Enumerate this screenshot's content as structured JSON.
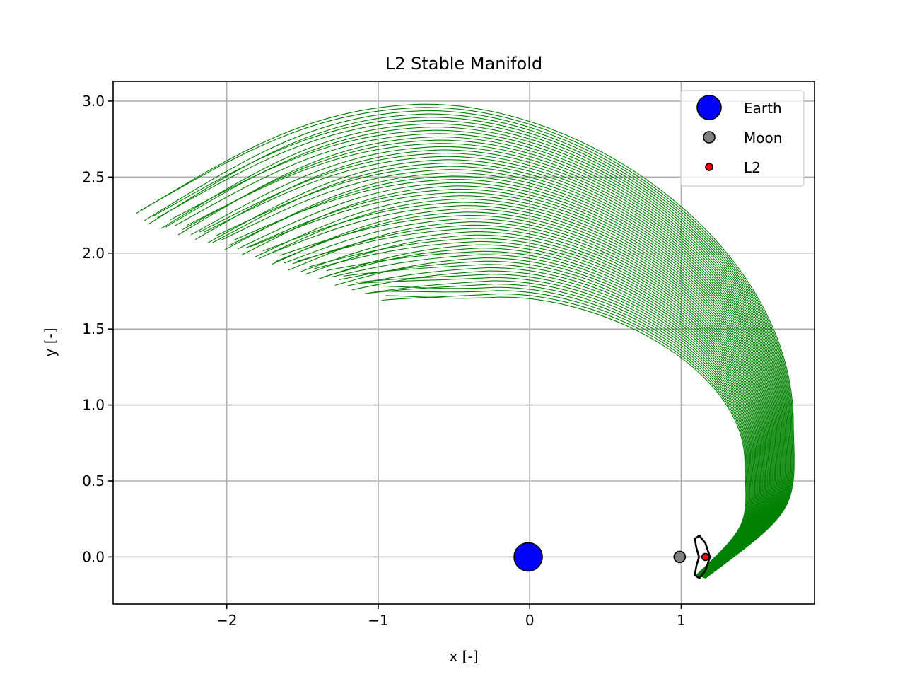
{
  "chart_data": {
    "type": "line",
    "title": "L2 Stable Manifold",
    "xlabel": "x [-]",
    "ylabel": "y [-]",
    "xlim": [
      -2.75,
      1.88
    ],
    "ylim": [
      -0.31,
      3.13
    ],
    "xticks": [
      -2,
      -1,
      0,
      1
    ],
    "xtick_labels": [
      "−2",
      "−1",
      "0",
      "1"
    ],
    "yticks": [
      0.0,
      0.5,
      1.0,
      1.5,
      2.0,
      2.5,
      3.0
    ],
    "ytick_labels": [
      "0.0",
      "0.5",
      "1.0",
      "1.5",
      "2.0",
      "2.5",
      "3.0"
    ],
    "grid": true,
    "legend_position": "top-right",
    "manifold_color": "#008000",
    "manifold_trajectory_count": 60,
    "manifold_envelope": {
      "outer_start": [
        1.16,
        -0.14
      ],
      "outer_peak_right": [
        1.74,
        0.85
      ],
      "outer_top": [
        -0.7,
        2.98
      ],
      "outer_left_tip": [
        -2.6,
        2.25
      ],
      "inner_start": [
        1.1,
        -0.12
      ],
      "inner_right": [
        1.42,
        0.6
      ],
      "inner_top": [
        -0.2,
        1.71
      ],
      "inner_left_tip": [
        -0.95,
        1.72
      ]
    },
    "lyapunov_orbit": {
      "color": "#000000",
      "points": [
        [
          1.118,
          0.0
        ],
        [
          1.1,
          0.06
        ],
        [
          1.09,
          0.12
        ],
        [
          1.12,
          0.14
        ],
        [
          1.16,
          0.09
        ],
        [
          1.19,
          0.0
        ],
        [
          1.16,
          -0.09
        ],
        [
          1.12,
          -0.14
        ],
        [
          1.09,
          -0.12
        ],
        [
          1.1,
          -0.06
        ],
        [
          1.118,
          0.0
        ]
      ]
    },
    "points": [
      {
        "name": "Earth",
        "x": -0.01,
        "y": 0.0,
        "color": "#0000ff",
        "marker_size": "large"
      },
      {
        "name": "Moon",
        "x": 0.99,
        "y": 0.0,
        "color": "#808080",
        "marker_size": "medium"
      },
      {
        "name": "L2",
        "x": 1.16,
        "y": 0.0,
        "color": "#ff0000",
        "marker_size": "small"
      }
    ],
    "legend": [
      {
        "label": "Earth",
        "color": "#0000ff"
      },
      {
        "label": "Moon",
        "color": "#808080"
      },
      {
        "label": "L2",
        "color": "#ff0000"
      }
    ]
  }
}
